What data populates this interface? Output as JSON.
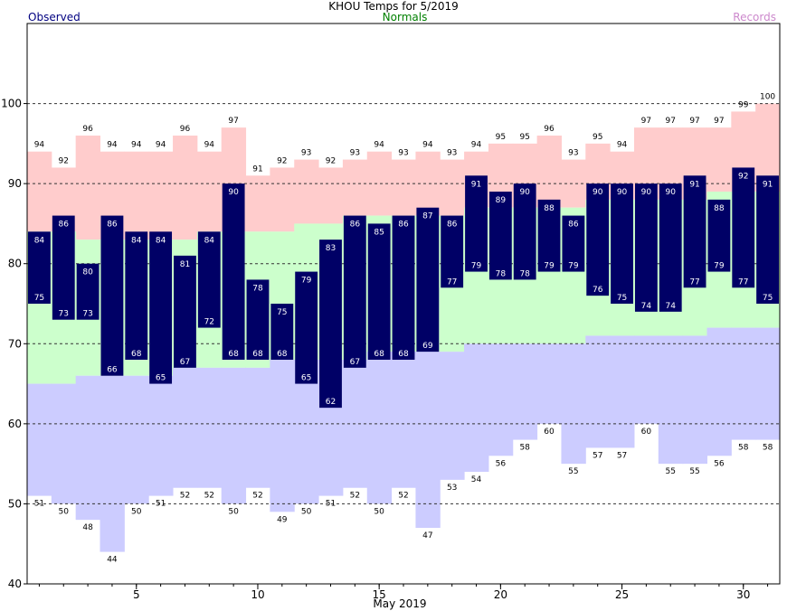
{
  "title": "KHOU Temps for 5/2019",
  "legend": {
    "observed": "Observed",
    "normals": "Normals",
    "records": "Records"
  },
  "colors": {
    "observed_bar": "#000066",
    "normal_band": "#ccffcc",
    "record_high": "#ffcccc",
    "record_low": "#ccccff",
    "observed_label": "#000080",
    "normals_label": "#008000",
    "records_label": "#cc88cc"
  },
  "chart_data": {
    "type": "bar",
    "xlabel": "May 2019",
    "ylim": [
      40,
      110
    ],
    "yticks": [
      40,
      50,
      60,
      70,
      80,
      90,
      100
    ],
    "xticks": [
      5,
      10,
      15,
      20,
      25,
      30
    ],
    "gridlines": [
      50,
      60,
      70,
      80,
      90,
      100
    ],
    "days": [
      1,
      2,
      3,
      4,
      5,
      6,
      7,
      8,
      9,
      10,
      11,
      12,
      13,
      14,
      15,
      16,
      17,
      18,
      19,
      20,
      21,
      22,
      23,
      24,
      25,
      26,
      27,
      28,
      29,
      30,
      31
    ],
    "series": [
      {
        "name": "Observed",
        "key": "obs_high",
        "values": [
          84,
          86,
          80,
          86,
          84,
          84,
          81,
          84,
          90,
          78,
          75,
          79,
          83,
          86,
          85,
          86,
          87,
          86,
          91,
          89,
          90,
          88,
          86,
          90,
          90,
          90,
          90,
          91,
          88,
          92,
          91
        ]
      },
      {
        "name": "Observed",
        "key": "obs_low",
        "values": [
          75,
          73,
          73,
          66,
          68,
          65,
          67,
          72,
          68,
          68,
          68,
          65,
          62,
          67,
          68,
          68,
          69,
          77,
          79,
          78,
          78,
          79,
          79,
          76,
          75,
          74,
          74,
          77,
          79,
          77,
          75
        ]
      },
      {
        "name": "Normals",
        "key": "normal_high",
        "values": [
          84,
          84,
          83,
          83,
          83,
          83,
          83,
          84,
          84,
          84,
          84,
          85,
          85,
          86,
          86,
          86,
          86,
          86,
          87,
          87,
          87,
          87,
          87,
          88,
          88,
          88,
          88,
          88,
          89,
          89,
          89
        ]
      },
      {
        "name": "Normals",
        "key": "normal_low",
        "values": [
          65,
          65,
          66,
          66,
          66,
          66,
          67,
          67,
          67,
          67,
          68,
          68,
          68,
          68,
          69,
          69,
          69,
          69,
          70,
          70,
          70,
          70,
          70,
          71,
          71,
          71,
          71,
          71,
          72,
          72,
          72
        ]
      },
      {
        "name": "Records",
        "key": "record_high",
        "values": [
          94,
          92,
          96,
          94,
          94,
          94,
          96,
          94,
          97,
          91,
          92,
          93,
          92,
          93,
          94,
          93,
          94,
          93,
          94,
          95,
          95,
          96,
          93,
          95,
          94,
          97,
          97,
          97,
          97,
          99,
          100
        ]
      },
      {
        "name": "Records",
        "key": "record_low",
        "values": [
          51,
          50,
          48,
          44,
          50,
          51,
          52,
          52,
          50,
          52,
          49,
          50,
          51,
          52,
          50,
          52,
          47,
          53,
          54,
          56,
          58,
          60,
          55,
          57,
          57,
          60,
          55,
          55,
          56,
          58,
          58
        ]
      }
    ]
  }
}
